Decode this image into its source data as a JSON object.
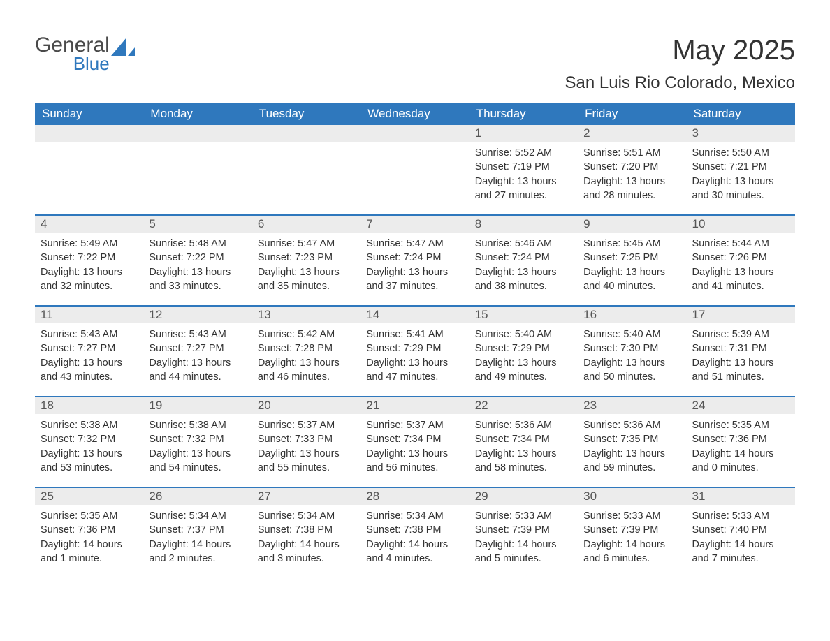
{
  "logo": {
    "text_top": "General",
    "text_bottom": "Blue",
    "shape_color": "#2f78bd",
    "text_color": "#4a4a4a"
  },
  "header": {
    "month": "May 2025",
    "location": "San Luis Rio Colorado, Mexico"
  },
  "colors": {
    "header_bg": "#2f78bd",
    "header_text": "#ffffff",
    "daynum_bg": "#ececec",
    "text": "#333333",
    "rule": "#2f78bd"
  },
  "weekdays": [
    "Sunday",
    "Monday",
    "Tuesday",
    "Wednesday",
    "Thursday",
    "Friday",
    "Saturday"
  ],
  "weeks": [
    [
      {
        "empty": true
      },
      {
        "empty": true
      },
      {
        "empty": true
      },
      {
        "empty": true
      },
      {
        "n": "1",
        "sunrise": "Sunrise: 5:52 AM",
        "sunset": "Sunset: 7:19 PM",
        "daylight": "Daylight: 13 hours and 27 minutes."
      },
      {
        "n": "2",
        "sunrise": "Sunrise: 5:51 AM",
        "sunset": "Sunset: 7:20 PM",
        "daylight": "Daylight: 13 hours and 28 minutes."
      },
      {
        "n": "3",
        "sunrise": "Sunrise: 5:50 AM",
        "sunset": "Sunset: 7:21 PM",
        "daylight": "Daylight: 13 hours and 30 minutes."
      }
    ],
    [
      {
        "n": "4",
        "sunrise": "Sunrise: 5:49 AM",
        "sunset": "Sunset: 7:22 PM",
        "daylight": "Daylight: 13 hours and 32 minutes."
      },
      {
        "n": "5",
        "sunrise": "Sunrise: 5:48 AM",
        "sunset": "Sunset: 7:22 PM",
        "daylight": "Daylight: 13 hours and 33 minutes."
      },
      {
        "n": "6",
        "sunrise": "Sunrise: 5:47 AM",
        "sunset": "Sunset: 7:23 PM",
        "daylight": "Daylight: 13 hours and 35 minutes."
      },
      {
        "n": "7",
        "sunrise": "Sunrise: 5:47 AM",
        "sunset": "Sunset: 7:24 PM",
        "daylight": "Daylight: 13 hours and 37 minutes."
      },
      {
        "n": "8",
        "sunrise": "Sunrise: 5:46 AM",
        "sunset": "Sunset: 7:24 PM",
        "daylight": "Daylight: 13 hours and 38 minutes."
      },
      {
        "n": "9",
        "sunrise": "Sunrise: 5:45 AM",
        "sunset": "Sunset: 7:25 PM",
        "daylight": "Daylight: 13 hours and 40 minutes."
      },
      {
        "n": "10",
        "sunrise": "Sunrise: 5:44 AM",
        "sunset": "Sunset: 7:26 PM",
        "daylight": "Daylight: 13 hours and 41 minutes."
      }
    ],
    [
      {
        "n": "11",
        "sunrise": "Sunrise: 5:43 AM",
        "sunset": "Sunset: 7:27 PM",
        "daylight": "Daylight: 13 hours and 43 minutes."
      },
      {
        "n": "12",
        "sunrise": "Sunrise: 5:43 AM",
        "sunset": "Sunset: 7:27 PM",
        "daylight": "Daylight: 13 hours and 44 minutes."
      },
      {
        "n": "13",
        "sunrise": "Sunrise: 5:42 AM",
        "sunset": "Sunset: 7:28 PM",
        "daylight": "Daylight: 13 hours and 46 minutes."
      },
      {
        "n": "14",
        "sunrise": "Sunrise: 5:41 AM",
        "sunset": "Sunset: 7:29 PM",
        "daylight": "Daylight: 13 hours and 47 minutes."
      },
      {
        "n": "15",
        "sunrise": "Sunrise: 5:40 AM",
        "sunset": "Sunset: 7:29 PM",
        "daylight": "Daylight: 13 hours and 49 minutes."
      },
      {
        "n": "16",
        "sunrise": "Sunrise: 5:40 AM",
        "sunset": "Sunset: 7:30 PM",
        "daylight": "Daylight: 13 hours and 50 minutes."
      },
      {
        "n": "17",
        "sunrise": "Sunrise: 5:39 AM",
        "sunset": "Sunset: 7:31 PM",
        "daylight": "Daylight: 13 hours and 51 minutes."
      }
    ],
    [
      {
        "n": "18",
        "sunrise": "Sunrise: 5:38 AM",
        "sunset": "Sunset: 7:32 PM",
        "daylight": "Daylight: 13 hours and 53 minutes."
      },
      {
        "n": "19",
        "sunrise": "Sunrise: 5:38 AM",
        "sunset": "Sunset: 7:32 PM",
        "daylight": "Daylight: 13 hours and 54 minutes."
      },
      {
        "n": "20",
        "sunrise": "Sunrise: 5:37 AM",
        "sunset": "Sunset: 7:33 PM",
        "daylight": "Daylight: 13 hours and 55 minutes."
      },
      {
        "n": "21",
        "sunrise": "Sunrise: 5:37 AM",
        "sunset": "Sunset: 7:34 PM",
        "daylight": "Daylight: 13 hours and 56 minutes."
      },
      {
        "n": "22",
        "sunrise": "Sunrise: 5:36 AM",
        "sunset": "Sunset: 7:34 PM",
        "daylight": "Daylight: 13 hours and 58 minutes."
      },
      {
        "n": "23",
        "sunrise": "Sunrise: 5:36 AM",
        "sunset": "Sunset: 7:35 PM",
        "daylight": "Daylight: 13 hours and 59 minutes."
      },
      {
        "n": "24",
        "sunrise": "Sunrise: 5:35 AM",
        "sunset": "Sunset: 7:36 PM",
        "daylight": "Daylight: 14 hours and 0 minutes."
      }
    ],
    [
      {
        "n": "25",
        "sunrise": "Sunrise: 5:35 AM",
        "sunset": "Sunset: 7:36 PM",
        "daylight": "Daylight: 14 hours and 1 minute."
      },
      {
        "n": "26",
        "sunrise": "Sunrise: 5:34 AM",
        "sunset": "Sunset: 7:37 PM",
        "daylight": "Daylight: 14 hours and 2 minutes."
      },
      {
        "n": "27",
        "sunrise": "Sunrise: 5:34 AM",
        "sunset": "Sunset: 7:38 PM",
        "daylight": "Daylight: 14 hours and 3 minutes."
      },
      {
        "n": "28",
        "sunrise": "Sunrise: 5:34 AM",
        "sunset": "Sunset: 7:38 PM",
        "daylight": "Daylight: 14 hours and 4 minutes."
      },
      {
        "n": "29",
        "sunrise": "Sunrise: 5:33 AM",
        "sunset": "Sunset: 7:39 PM",
        "daylight": "Daylight: 14 hours and 5 minutes."
      },
      {
        "n": "30",
        "sunrise": "Sunrise: 5:33 AM",
        "sunset": "Sunset: 7:39 PM",
        "daylight": "Daylight: 14 hours and 6 minutes."
      },
      {
        "n": "31",
        "sunrise": "Sunrise: 5:33 AM",
        "sunset": "Sunset: 7:40 PM",
        "daylight": "Daylight: 14 hours and 7 minutes."
      }
    ]
  ]
}
